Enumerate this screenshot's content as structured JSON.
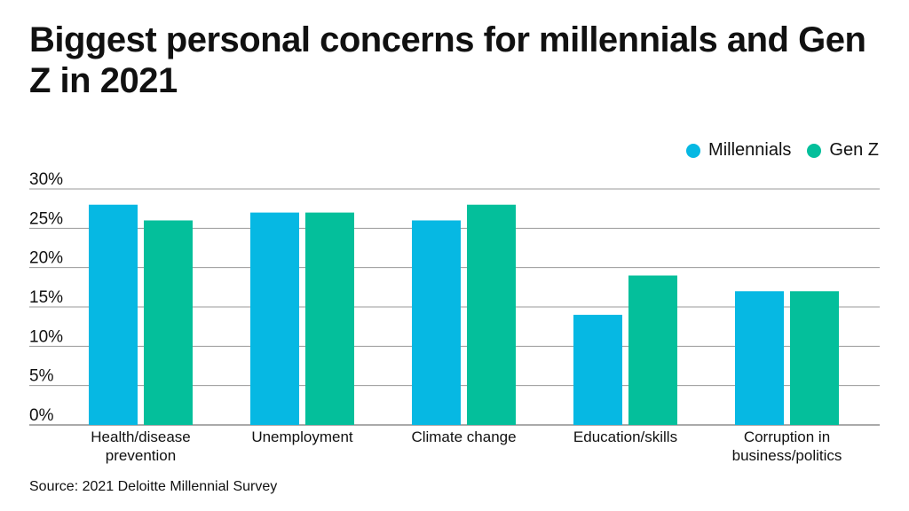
{
  "title": "Biggest personal concerns for millennials and Gen Z in 2021",
  "source": "Source: 2021 Deloitte Millennial Survey",
  "colors": {
    "millennials": "#06b8e3",
    "genz": "#04bf9b"
  },
  "chart_data": {
    "type": "bar",
    "categories": [
      [
        "Health/disease",
        "prevention"
      ],
      [
        "Unemployment"
      ],
      [
        "Climate change"
      ],
      [
        "Education/skills"
      ],
      [
        "Corruption in",
        "business/politics"
      ]
    ],
    "series": [
      {
        "name": "Millennials",
        "values": [
          28,
          27,
          26,
          14,
          17
        ]
      },
      {
        "name": "Gen Z",
        "values": [
          26,
          27,
          28,
          19,
          17
        ]
      }
    ],
    "ylim": [
      0,
      30
    ],
    "yticks": [
      0,
      5,
      10,
      15,
      20,
      25,
      30
    ],
    "ytick_labels": [
      "0%",
      "5%",
      "10%",
      "15%",
      "20%",
      "25%",
      "30%"
    ],
    "grid": true,
    "legend_position": "top-right"
  }
}
